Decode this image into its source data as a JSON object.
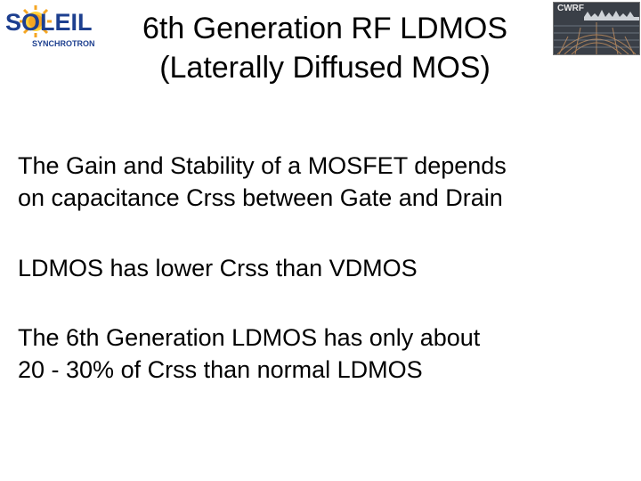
{
  "logos": {
    "soleil_wordmark": "SOLEIL",
    "soleil_subtitle": "SYNCHROTRON",
    "cwrf_text": "CWRF"
  },
  "title": {
    "line1": "6th Generation RF LDMOS",
    "line2": "(Laterally Diffused MOS)"
  },
  "body": {
    "para1_line1": "The Gain and Stability of a MOSFET depends",
    "para1_line2": "on capacitance Crss between Gate and Drain",
    "para2_line1": "LDMOS has lower Crss than VDMOS",
    "para3_line1": "The 6th Generation LDMOS has only about",
    "para3_line2": "20 - 30% of Crss than normal LDMOS"
  },
  "colors": {
    "soleil_blue": "#1d3f8f",
    "sun_orange": "#f5a623",
    "sun_yellow": "#ffd23a"
  }
}
